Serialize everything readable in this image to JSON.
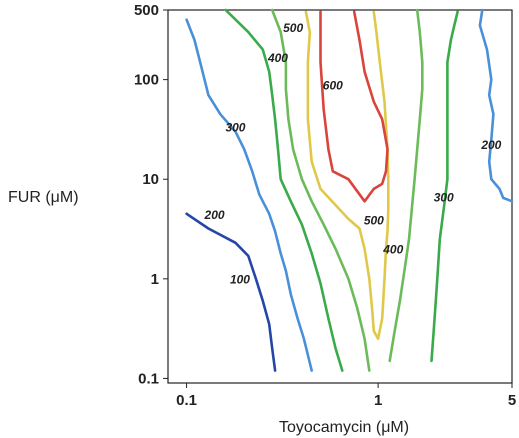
{
  "chart_data": {
    "type": "contour",
    "xlabel": "Toyocamycin (μM)",
    "ylabel": "FUR (μM)",
    "x_scale": "log",
    "y_scale": "log",
    "xlim": [
      0.08,
      5
    ],
    "ylim": [
      0.09,
      500
    ],
    "x_ticks": [
      {
        "value": 0.1,
        "label": "0.1"
      },
      {
        "value": 1,
        "label": "1"
      },
      {
        "value": 5,
        "label": "5"
      }
    ],
    "y_ticks": [
      {
        "value": 0.1,
        "label": "0.1"
      },
      {
        "value": 1,
        "label": "1"
      },
      {
        "value": 10,
        "label": "10"
      },
      {
        "value": 100,
        "label": "100"
      },
      {
        "value": 500,
        "label": "500"
      }
    ],
    "grid": false,
    "levels": [
      {
        "level": 100,
        "label": "100",
        "color": "#2446a8",
        "points": [
          [
            0.1,
            4.5
          ],
          [
            0.13,
            3.2
          ],
          [
            0.18,
            2.3
          ],
          [
            0.21,
            1.7
          ],
          [
            0.23,
            1.0
          ],
          [
            0.25,
            0.6
          ],
          [
            0.27,
            0.35
          ],
          [
            0.28,
            0.2
          ],
          [
            0.29,
            0.12
          ]
        ]
      },
      {
        "level": 200,
        "label": "200",
        "color": "#4a90d9",
        "points": [
          [
            0.1,
            400
          ],
          [
            0.11,
            250
          ],
          [
            0.12,
            130
          ],
          [
            0.13,
            70
          ],
          [
            0.15,
            45
          ],
          [
            0.18,
            30
          ],
          [
            0.2,
            20
          ],
          [
            0.22,
            12
          ],
          [
            0.24,
            7
          ],
          [
            0.27,
            4.5
          ],
          [
            0.29,
            3
          ],
          [
            0.31,
            1.8
          ],
          [
            0.33,
            1.2
          ],
          [
            0.35,
            0.7
          ],
          [
            0.38,
            0.4
          ],
          [
            0.41,
            0.25
          ],
          [
            0.45,
            0.12
          ]
        ]
      },
      {
        "level": 200,
        "label": "200",
        "color": "#4a90d9",
        "points": [
          [
            3.5,
            500
          ],
          [
            3.4,
            350
          ],
          [
            3.7,
            200
          ],
          [
            3.9,
            100
          ],
          [
            3.8,
            70
          ],
          [
            4.0,
            45
          ],
          [
            3.9,
            25
          ],
          [
            3.8,
            15
          ],
          [
            3.9,
            10
          ],
          [
            4.3,
            8
          ],
          [
            4.5,
            6.5
          ],
          [
            5,
            6
          ]
        ]
      },
      {
        "level": 300,
        "label": "300",
        "color": "#3aaa4a",
        "points": [
          [
            0.16,
            500
          ],
          [
            0.21,
            300
          ],
          [
            0.25,
            200
          ],
          [
            0.27,
            120
          ],
          [
            0.28,
            70
          ],
          [
            0.29,
            40
          ],
          [
            0.3,
            20
          ],
          [
            0.31,
            10
          ],
          [
            0.35,
            6
          ],
          [
            0.4,
            3.5
          ],
          [
            0.45,
            1.8
          ],
          [
            0.5,
            0.9
          ],
          [
            0.55,
            0.4
          ],
          [
            0.6,
            0.2
          ],
          [
            0.65,
            0.12
          ]
        ]
      },
      {
        "level": 300,
        "label": "300",
        "color": "#3aaa4a",
        "points": [
          [
            2.6,
            480
          ],
          [
            2.5,
            350
          ],
          [
            2.4,
            250
          ],
          [
            2.3,
            150
          ],
          [
            2.3,
            80
          ],
          [
            2.3,
            40
          ],
          [
            2.3,
            20
          ],
          [
            2.3,
            10
          ],
          [
            2.2,
            5
          ],
          [
            2.1,
            2.5
          ],
          [
            2.05,
            1.2
          ],
          [
            2.0,
            0.6
          ],
          [
            1.95,
            0.3
          ],
          [
            1.9,
            0.15
          ]
        ]
      },
      {
        "level": 400,
        "label": "400",
        "color": "#6cbb5a",
        "points": [
          [
            0.28,
            500
          ],
          [
            0.31,
            300
          ],
          [
            0.33,
            150
          ],
          [
            0.33,
            80
          ],
          [
            0.34,
            40
          ],
          [
            0.36,
            20
          ],
          [
            0.4,
            10
          ],
          [
            0.45,
            6
          ],
          [
            0.52,
            3.5
          ],
          [
            0.6,
            2
          ],
          [
            0.7,
            1
          ],
          [
            0.78,
            0.5
          ],
          [
            0.85,
            0.25
          ],
          [
            0.9,
            0.12
          ]
        ]
      },
      {
        "level": 400,
        "label": "400",
        "color": "#6cbb5a",
        "points": [
          [
            1.6,
            500
          ],
          [
            1.65,
            300
          ],
          [
            1.7,
            150
          ],
          [
            1.7,
            80
          ],
          [
            1.65,
            40
          ],
          [
            1.6,
            20
          ],
          [
            1.55,
            10
          ],
          [
            1.5,
            5
          ],
          [
            1.45,
            2.5
          ],
          [
            1.38,
            1.3
          ],
          [
            1.3,
            0.6
          ],
          [
            1.22,
            0.3
          ],
          [
            1.15,
            0.15
          ]
        ]
      },
      {
        "level": 500,
        "label": "500",
        "color": "#e0c84a",
        "points": [
          [
            0.42,
            480
          ],
          [
            0.44,
            300
          ],
          [
            0.43,
            150
          ],
          [
            0.43,
            80
          ],
          [
            0.43,
            40
          ],
          [
            0.45,
            15
          ],
          [
            0.5,
            8
          ],
          [
            0.6,
            5.5
          ],
          [
            0.7,
            4
          ],
          [
            0.8,
            3.2
          ],
          [
            0.85,
            2
          ],
          [
            0.9,
            1
          ],
          [
            0.93,
            0.5
          ],
          [
            0.95,
            0.3
          ],
          [
            1.0,
            0.25
          ],
          [
            1.05,
            0.4
          ],
          [
            1.08,
            1
          ],
          [
            1.1,
            2
          ],
          [
            1.12,
            3
          ],
          [
            1.13,
            5
          ],
          [
            1.13,
            10
          ],
          [
            1.12,
            20
          ],
          [
            1.08,
            60
          ],
          [
            1.02,
            150
          ],
          [
            0.98,
            300
          ],
          [
            0.95,
            480
          ]
        ]
      },
      {
        "level": 600,
        "label": "600",
        "color": "#d9443c",
        "points": [
          [
            0.5,
            480
          ],
          [
            0.5,
            150
          ],
          [
            0.52,
            50
          ],
          [
            0.55,
            20
          ],
          [
            0.58,
            12
          ],
          [
            0.7,
            10
          ],
          [
            0.85,
            6
          ],
          [
            0.95,
            8
          ],
          [
            1.05,
            9
          ],
          [
            1.1,
            12
          ],
          [
            1.12,
            20
          ],
          [
            1.05,
            40
          ],
          [
            0.95,
            60
          ],
          [
            0.85,
            120
          ],
          [
            0.8,
            250
          ],
          [
            0.75,
            480
          ]
        ]
      }
    ],
    "level_labels": [
      {
        "text": "100",
        "x": 0.19,
        "y": 0.9
      },
      {
        "text": "200",
        "x": 0.14,
        "y": 4.0
      },
      {
        "text": "300",
        "x": 0.18,
        "y": 30
      },
      {
        "text": "400",
        "x": 0.3,
        "y": 150
      },
      {
        "text": "500",
        "x": 0.36,
        "y": 300
      },
      {
        "text": "600",
        "x": 0.58,
        "y": 80
      },
      {
        "text": "500",
        "x": 0.95,
        "y": 3.5
      },
      {
        "text": "400",
        "x": 1.2,
        "y": 1.8
      },
      {
        "text": "300",
        "x": 2.2,
        "y": 6
      },
      {
        "text": "200",
        "x": 3.9,
        "y": 20
      }
    ]
  }
}
